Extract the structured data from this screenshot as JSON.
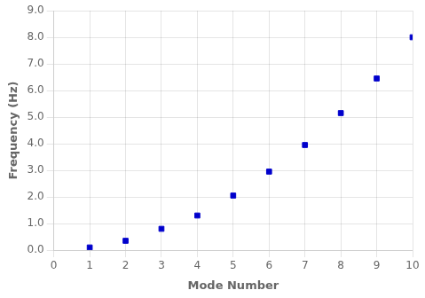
{
  "chart_data": {
    "type": "scatter",
    "x": [
      1,
      2,
      3,
      4,
      5,
      6,
      7,
      8,
      9,
      10
    ],
    "values": [
      0.1,
      0.35,
      0.8,
      1.3,
      2.05,
      2.95,
      3.95,
      5.15,
      6.45,
      8.0
    ],
    "color": "#0000CC",
    "marker": "square",
    "xlabel": "Mode Number",
    "ylabel": "Frequency (Hz)",
    "xlim": [
      0,
      10
    ],
    "ylim": [
      0.0,
      9.0
    ],
    "xticks": [
      0,
      1,
      2,
      3,
      4,
      5,
      6,
      7,
      8,
      9,
      10
    ],
    "yticks": [
      {
        "value": 0.0,
        "label": "0.0"
      },
      {
        "value": 1.0,
        "label": "1.0"
      },
      {
        "value": 2.0,
        "label": "2.0"
      },
      {
        "value": 3.0,
        "label": "3.0"
      },
      {
        "value": 4.0,
        "label": "4.0"
      },
      {
        "value": 5.0,
        "label": "5.0"
      },
      {
        "value": 6.0,
        "label": "6.0"
      },
      {
        "value": 7.0,
        "label": "7.0"
      },
      {
        "value": 8.0,
        "label": "8.0"
      },
      {
        "value": 9.0,
        "label": "9.0"
      }
    ],
    "grid": true
  }
}
